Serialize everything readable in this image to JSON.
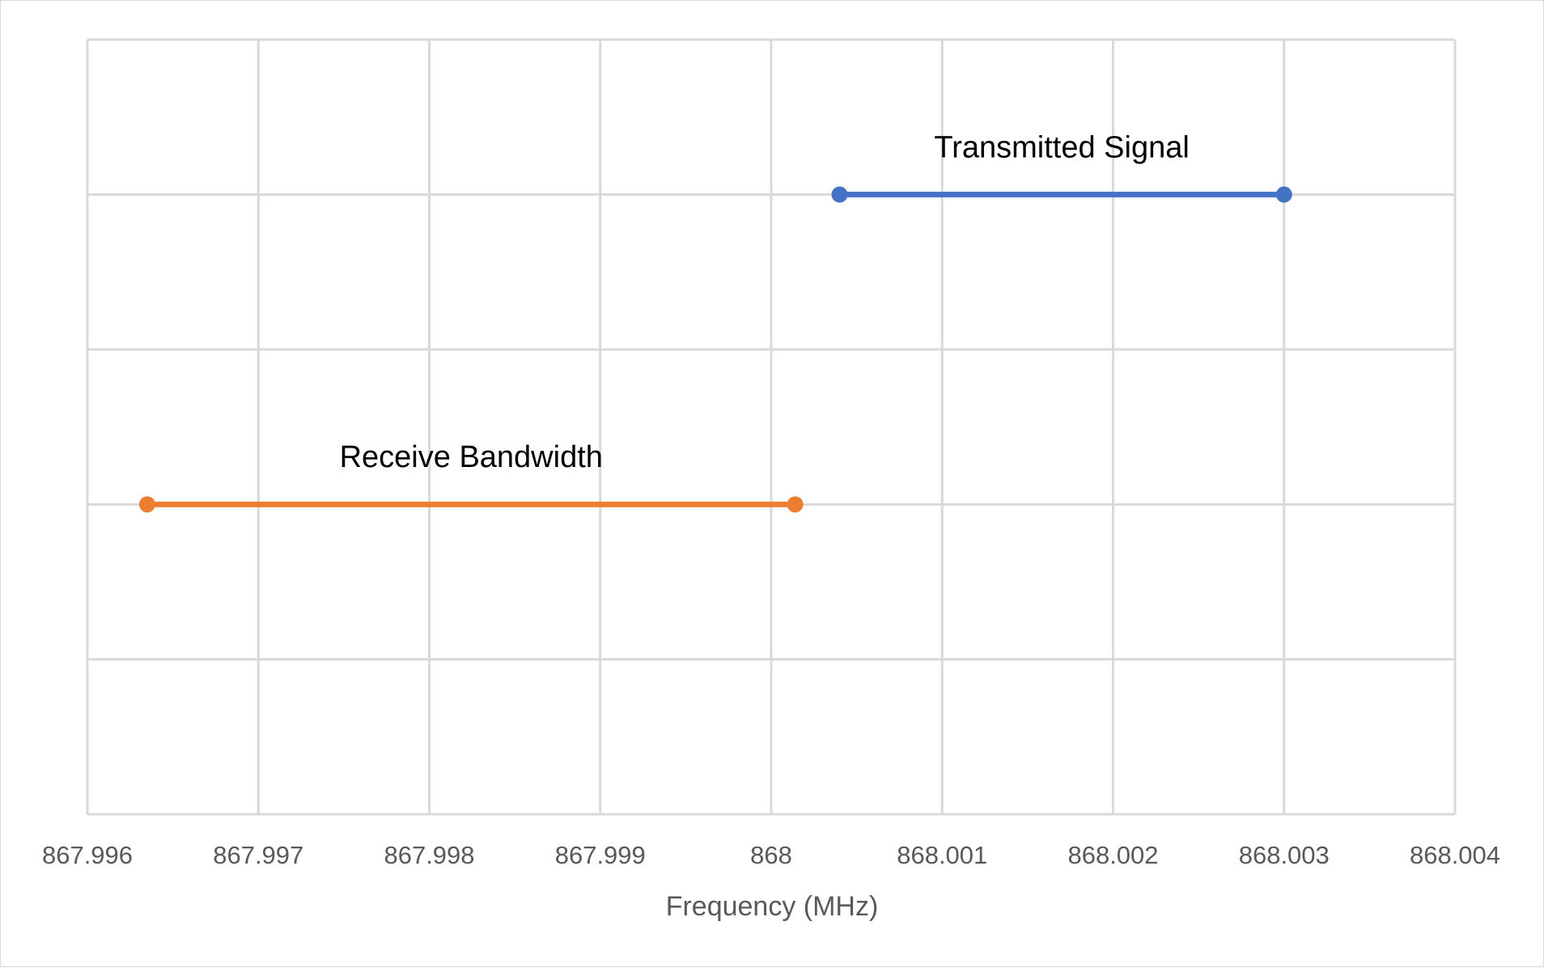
{
  "chart_data": {
    "type": "line",
    "title": "",
    "xlabel": "Frequency (MHz)",
    "ylabel": "",
    "xlim": [
      867.996,
      868.004
    ],
    "ylim": [
      0,
      5
    ],
    "x_ticks": [
      "867.996",
      "867.997",
      "867.998",
      "867.999",
      "868",
      "868.001",
      "868.002",
      "868.003",
      "868.004"
    ],
    "grid": true,
    "legend": "none",
    "series": [
      {
        "name": "Transmitted Signal",
        "color": "#4472C4",
        "x": [
          868.0004,
          868.003
        ],
        "y": [
          4,
          4
        ]
      },
      {
        "name": "Receive Bandwidth",
        "color": "#ED7D31",
        "x": [
          867.99635,
          868.00014
        ],
        "y": [
          2,
          2
        ]
      }
    ]
  }
}
